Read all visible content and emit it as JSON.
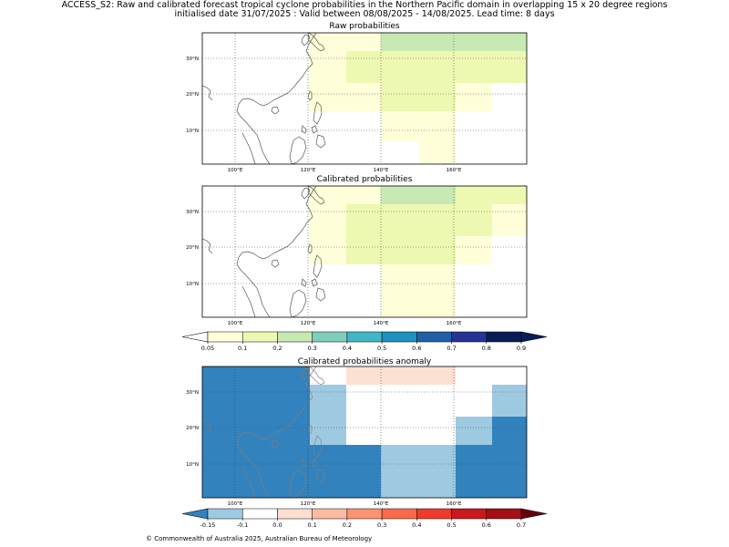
{
  "header": {
    "line1": "ACCESS_S2: Raw and calibrated forecast tropical cyclone probabilities in the Northern Pacific domain in overlapping 15 x 20 degree regions",
    "line2": "initialised date 31/07/2025 :  Valid between 08/08/2025 - 14/08/2025. Lead time: 8 days"
  },
  "panels": {
    "raw": {
      "title": "Raw probabilities"
    },
    "cal": {
      "title": "Calibrated probabilities"
    },
    "anom": {
      "title": "Calibrated probabilities anomaly"
    }
  },
  "axes": {
    "lon_ticks": [
      "100°E",
      "120°E",
      "140°E",
      "160°E"
    ],
    "lat_ticks": [
      "30°N",
      "20°N",
      "10°N"
    ]
  },
  "colorbars": {
    "prob": {
      "ticks": [
        "0.05",
        "0.1",
        "0.2",
        "0.3",
        "0.4",
        "0.5",
        "0.6",
        "0.7",
        "0.8",
        "0.9"
      ],
      "colors": [
        "#ffffd9",
        "#edf8b1",
        "#c7e9b4",
        "#7fcdbb",
        "#41b6c4",
        "#1d91c0",
        "#225ea8",
        "#253494",
        "#081d58"
      ],
      "under": "#ffffff",
      "over": "#081d58"
    },
    "anom": {
      "ticks": [
        "-0.15",
        "-0.1",
        "0.0",
        "0.1",
        "0.2",
        "0.3",
        "0.4",
        "0.5",
        "0.6",
        "0.7"
      ],
      "colors": [
        "#9ecae1",
        "#ffffff",
        "#fee0d2",
        "#fcbba1",
        "#fc9272",
        "#fb6a4a",
        "#ef3b2c",
        "#cb181d",
        "#a50f15"
      ],
      "under": "#3182bd",
      "over": "#67000d"
    }
  },
  "colors": {
    "yellow": "#ffffd9",
    "lightgreen": "#edf8b1",
    "green": "#c7e9b4",
    "dark_blue": "#3182bd",
    "light_blue": "#9ecae1",
    "pink": "#fee0d2",
    "coast": "#808080"
  },
  "footer": "© Commonwealth of Australia 2025, Australian Bureau of Meteorology"
}
